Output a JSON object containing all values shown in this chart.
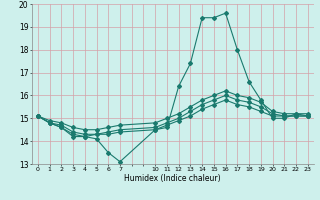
{
  "xlabel": "Humidex (Indice chaleur)",
  "bg_color": "#cef0ec",
  "grid_color": "#d4a0a8",
  "line_color": "#1a7a6e",
  "hours": [
    0,
    1,
    2,
    3,
    4,
    5,
    6,
    7,
    10,
    11,
    12,
    13,
    14,
    15,
    16,
    17,
    18,
    19,
    20,
    21,
    22,
    23
  ],
  "series": [
    [
      15.1,
      14.8,
      14.6,
      14.2,
      14.2,
      14.1,
      13.5,
      13.1,
      14.5,
      14.6,
      16.4,
      17.4,
      19.4,
      19.4,
      19.6,
      18.0,
      16.6,
      15.8,
      15.0,
      15.0,
      15.2,
      15.1
    ],
    [
      15.1,
      14.8,
      14.6,
      14.3,
      14.2,
      14.3,
      14.3,
      14.4,
      14.5,
      14.7,
      14.9,
      15.1,
      15.4,
      15.6,
      15.8,
      15.6,
      15.5,
      15.3,
      15.1,
      15.1,
      15.1,
      15.1
    ],
    [
      15.1,
      14.8,
      14.7,
      14.4,
      14.3,
      14.3,
      14.4,
      14.5,
      14.6,
      14.8,
      15.0,
      15.3,
      15.6,
      15.8,
      16.0,
      15.8,
      15.7,
      15.5,
      15.2,
      15.1,
      15.1,
      15.1
    ],
    [
      15.1,
      14.9,
      14.8,
      14.6,
      14.5,
      14.5,
      14.6,
      14.7,
      14.8,
      15.0,
      15.2,
      15.5,
      15.8,
      16.0,
      16.2,
      16.0,
      15.9,
      15.7,
      15.3,
      15.2,
      15.2,
      15.2
    ]
  ],
  "ylim": [
    13,
    20
  ],
  "yticks": [
    13,
    14,
    15,
    16,
    17,
    18,
    19,
    20
  ],
  "all_xticks": [
    0,
    1,
    2,
    3,
    4,
    5,
    6,
    7,
    8,
    9,
    10,
    11,
    12,
    13,
    14,
    15,
    16,
    17,
    18,
    19,
    20,
    21,
    22,
    23
  ],
  "xtick_labels": [
    "0",
    "1",
    "2",
    "3",
    "4",
    "5",
    "6",
    "7",
    "",
    "",
    "10",
    "11",
    "12",
    "13",
    "14",
    "15",
    "16",
    "17",
    "18",
    "19",
    "20",
    "21",
    "22",
    "23"
  ],
  "marker": "D",
  "markersize": 2.0,
  "linewidth": 0.8
}
